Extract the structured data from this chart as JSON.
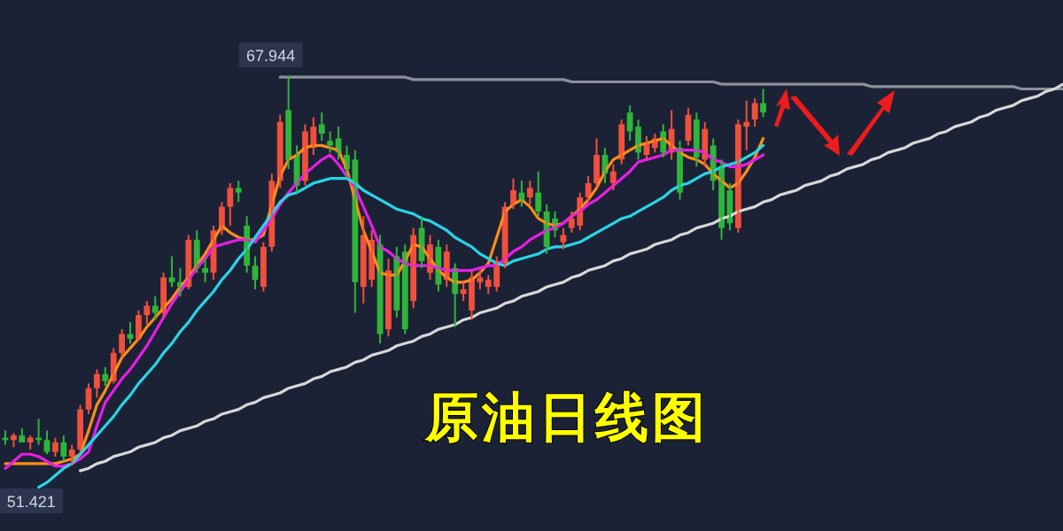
{
  "chart_data": {
    "type": "candlestick",
    "title": "原油日线图",
    "categories": [
      null,
      null,
      null,
      null,
      null,
      null,
      null,
      null,
      null,
      null,
      null,
      null,
      null,
      null,
      null,
      null,
      null,
      null,
      null,
      null,
      null,
      null,
      null,
      null,
      null,
      null,
      null,
      null,
      null,
      null,
      null,
      null,
      null,
      null,
      null,
      null,
      null,
      null,
      null,
      null,
      null,
      null,
      null,
      null,
      null,
      null,
      null,
      null,
      null,
      null,
      null,
      null,
      null,
      null,
      null,
      null,
      null,
      null,
      null,
      null,
      null,
      null,
      null,
      null,
      null,
      null,
      null,
      null,
      null,
      null,
      null,
      null,
      null,
      null,
      null,
      null,
      null,
      null,
      null,
      null,
      null,
      null,
      null,
      null,
      null,
      null,
      null,
      null,
      null,
      null,
      null,
      null,
      null,
      null,
      null,
      null,
      null,
      null,
      null,
      null,
      null,
      null,
      null,
      null,
      null,
      null,
      null,
      null,
      null,
      null,
      null,
      null,
      null,
      null,
      null,
      null,
      null,
      null,
      null,
      null,
      null,
      null,
      null,
      null,
      null,
      null,
      null,
      null
    ],
    "ohlc": [
      [
        52.6,
        52.9,
        52.3,
        52.5
      ],
      [
        52.5,
        52.8,
        52.2,
        52.7
      ],
      [
        52.7,
        53.0,
        52.4,
        52.4
      ],
      [
        52.4,
        52.7,
        52.1,
        52.6
      ],
      [
        52.6,
        53.4,
        52.3,
        52.5
      ],
      [
        52.5,
        52.9,
        51.9,
        52.0
      ],
      [
        52.0,
        52.6,
        51.8,
        52.4
      ],
      [
        52.4,
        52.7,
        51.6,
        51.8
      ],
      [
        51.8,
        52.3,
        51.421,
        52.1
      ],
      [
        52.1,
        54.0,
        52.0,
        53.8
      ],
      [
        53.8,
        54.9,
        53.6,
        54.7
      ],
      [
        54.7,
        55.5,
        54.3,
        55.3
      ],
      [
        55.3,
        55.6,
        54.8,
        55.0
      ],
      [
        55.0,
        56.4,
        54.9,
        56.2
      ],
      [
        56.2,
        57.2,
        56.0,
        57.0
      ],
      [
        57.0,
        57.5,
        56.6,
        56.8
      ],
      [
        56.8,
        58.0,
        56.7,
        57.8
      ],
      [
        57.8,
        58.4,
        57.4,
        58.2
      ],
      [
        58.2,
        58.6,
        57.6,
        57.9
      ],
      [
        57.9,
        59.6,
        57.7,
        59.4
      ],
      [
        59.4,
        60.3,
        59.0,
        59.2
      ],
      [
        59.2,
        59.8,
        58.6,
        59.0
      ],
      [
        59.0,
        61.2,
        58.9,
        61.0
      ],
      [
        61.0,
        61.4,
        59.6,
        59.8
      ],
      [
        59.8,
        60.2,
        59.2,
        59.6
      ],
      [
        59.6,
        61.6,
        59.3,
        61.4
      ],
      [
        61.4,
        62.6,
        61.2,
        62.4
      ],
      [
        62.4,
        63.4,
        61.6,
        63.2
      ],
      [
        63.2,
        63.5,
        62.6,
        63.0
      ],
      [
        61.6,
        62.0,
        59.6,
        59.9
      ],
      [
        59.9,
        60.3,
        58.9,
        59.3
      ],
      [
        59.0,
        60.9,
        58.8,
        60.7
      ],
      [
        60.7,
        63.8,
        60.5,
        63.5
      ],
      [
        63.5,
        66.3,
        63.2,
        66.0
      ],
      [
        66.5,
        67.944,
        64.0,
        64.4
      ],
      [
        64.6,
        65.0,
        63.0,
        63.3
      ],
      [
        63.5,
        65.9,
        63.3,
        65.6
      ],
      [
        64.9,
        66.2,
        64.6,
        65.8
      ],
      [
        65.9,
        66.4,
        65.2,
        65.5
      ],
      [
        65.2,
        65.6,
        64.7,
        65.0
      ],
      [
        65.3,
        65.8,
        64.4,
        64.7
      ],
      [
        64.6,
        65.0,
        63.6,
        64.0
      ],
      [
        64.4,
        64.8,
        57.9,
        59.2
      ],
      [
        59.0,
        62.0,
        58.3,
        61.2
      ],
      [
        59.3,
        61.4,
        59.0,
        61.0
      ],
      [
        60.8,
        61.2,
        56.6,
        57.0
      ],
      [
        57.2,
        60.2,
        56.9,
        59.7
      ],
      [
        60.3,
        60.7,
        57.7,
        58.0
      ],
      [
        60.5,
        60.8,
        57.0,
        57.2
      ],
      [
        58.4,
        61.5,
        58.1,
        61.2
      ],
      [
        61.5,
        62.0,
        59.8,
        60.1
      ],
      [
        59.6,
        61.2,
        59.3,
        60.8
      ],
      [
        60.7,
        61.0,
        58.8,
        59.1
      ],
      [
        59.3,
        60.8,
        59.0,
        60.5
      ],
      [
        59.8,
        60.0,
        57.3,
        58.7
      ],
      [
        58.7,
        59.2,
        58.4,
        58.9
      ],
      [
        58.0,
        59.7,
        57.6,
        59.4
      ],
      [
        59.2,
        59.7,
        58.9,
        59.4
      ],
      [
        59.0,
        59.5,
        58.7,
        59.3
      ],
      [
        59.0,
        60.3,
        58.8,
        60.1
      ],
      [
        60.0,
        62.6,
        59.8,
        62.4
      ],
      [
        62.5,
        63.6,
        62.3,
        63.1
      ],
      [
        63.0,
        63.5,
        62.4,
        62.7
      ],
      [
        62.8,
        63.5,
        62.5,
        63.2
      ],
      [
        63.0,
        63.9,
        62.0,
        62.2
      ],
      [
        62.2,
        62.5,
        60.4,
        60.7
      ],
      [
        61.9,
        62.2,
        61.1,
        61.4
      ],
      [
        60.9,
        61.5,
        60.6,
        61.2
      ],
      [
        61.5,
        62.2,
        61.3,
        61.9
      ],
      [
        61.6,
        63.0,
        61.4,
        62.8
      ],
      [
        62.8,
        63.7,
        62.6,
        63.4
      ],
      [
        63.4,
        65.3,
        63.2,
        64.6
      ],
      [
        64.6,
        64.9,
        63.4,
        63.8
      ],
      [
        63.4,
        64.2,
        63.1,
        63.9
      ],
      [
        64.4,
        66.1,
        64.2,
        65.9
      ],
      [
        66.4,
        66.7,
        65.2,
        65.6
      ],
      [
        65.8,
        66.1,
        64.4,
        64.7
      ],
      [
        64.6,
        65.4,
        64.4,
        65.1
      ],
      [
        64.9,
        65.5,
        64.7,
        65.3
      ],
      [
        65.6,
        65.9,
        64.5,
        64.7
      ],
      [
        64.7,
        66.5,
        64.4,
        65.7
      ],
      [
        64.9,
        65.2,
        62.7,
        63.0
      ],
      [
        65.2,
        66.6,
        65.0,
        66.3
      ],
      [
        66.1,
        66.4,
        64.1,
        64.5
      ],
      [
        64.4,
        66.0,
        64.1,
        65.7
      ],
      [
        65.0,
        65.3,
        63.1,
        63.5
      ],
      [
        64.1,
        64.4,
        61.0,
        61.5
      ],
      [
        63.1,
        63.4,
        61.4,
        61.7
      ],
      [
        61.5,
        66.1,
        61.3,
        65.9
      ],
      [
        65.8,
        66.9,
        64.8,
        66.0
      ],
      [
        66.1,
        67.0,
        65.8,
        66.8
      ],
      [
        66.8,
        67.4,
        66.2,
        66.4
      ],
      null,
      null,
      null,
      null,
      null,
      null,
      null,
      null,
      null,
      null,
      null,
      null,
      null,
      null,
      null,
      null,
      null,
      null,
      null,
      null,
      null,
      null,
      null,
      null,
      null,
      null,
      null,
      null,
      null,
      null,
      null,
      null,
      null,
      null,
      null,
      null
    ],
    "series": [
      {
        "type": "line",
        "color": "#ff8c1a",
        "values": [
          51.5,
          51.5,
          51.5,
          51.5,
          51.5,
          51.5,
          51.5,
          51.6,
          51.7,
          51.9,
          52.9,
          54.0,
          54.6,
          55.3,
          56.0,
          56.4,
          56.8,
          57.3,
          57.7,
          58.1,
          58.5,
          59.0,
          59.4,
          59.9,
          60.4,
          61.0,
          61.6,
          61.3,
          61.1,
          61.0,
          61.0,
          61.2,
          62.5,
          63.7,
          64.4,
          64.6,
          64.9,
          65.0,
          65.0,
          64.9,
          64.8,
          64.0,
          62.7,
          61.4,
          60.5,
          59.6,
          59.5,
          59.5,
          60.1,
          60.8,
          60.7,
          60.2,
          59.7,
          59.4,
          59.2,
          59.2,
          59.3,
          59.6,
          60.0,
          61.1,
          62.2,
          62.5,
          62.7,
          62.4,
          61.9,
          61.7,
          61.6,
          61.7,
          62.0,
          62.3,
          62.7,
          63.2,
          63.9,
          64.4,
          64.6,
          64.8,
          65.0,
          65.1,
          65.2,
          65.3,
          65.0,
          64.7,
          64.5,
          64.4,
          64.2,
          63.8,
          63.5,
          63.2,
          63.4,
          63.9,
          64.5,
          65.3,
          null,
          null,
          null,
          null,
          null,
          null,
          null,
          null,
          null,
          null,
          null,
          null,
          null,
          null,
          null,
          null,
          null,
          null,
          null,
          null,
          null,
          null,
          null,
          null,
          null,
          null,
          null,
          null,
          null,
          null,
          null,
          null,
          null,
          null,
          null,
          null
        ]
      },
      {
        "type": "line",
        "color": "#e61ee6",
        "values": [
          51.3,
          51.6,
          51.9,
          51.9,
          51.8,
          51.6,
          51.4,
          51.4,
          51.5,
          51.7,
          52.0,
          53.1,
          54.1,
          54.6,
          55.1,
          55.5,
          56.0,
          56.5,
          57.1,
          57.7,
          58.3,
          58.8,
          59.3,
          59.8,
          60.2,
          60.7,
          60.8,
          60.9,
          61.0,
          61.0,
          60.9,
          61.4,
          61.9,
          62.5,
          63.0,
          63.4,
          63.8,
          64.1,
          64.4,
          64.6,
          64.2,
          63.7,
          63.2,
          62.4,
          61.6,
          60.7,
          60.5,
          60.2,
          60.0,
          59.9,
          59.9,
          59.9,
          59.8,
          59.7,
          59.7,
          59.7,
          59.7,
          59.8,
          59.9,
          59.9,
          60.2,
          60.5,
          60.7,
          61.0,
          61.2,
          61.4,
          61.5,
          61.7,
          62.0,
          62.2,
          62.5,
          62.7,
          63.0,
          63.3,
          63.6,
          63.9,
          64.3,
          64.4,
          64.5,
          64.6,
          64.8,
          64.8,
          64.8,
          64.8,
          64.7,
          64.4,
          64.3,
          64.1,
          64.1,
          64.2,
          64.4,
          64.6,
          null,
          null,
          null,
          null,
          null,
          null,
          null,
          null,
          null,
          null,
          null,
          null,
          null,
          null,
          null,
          null,
          null,
          null,
          null,
          null,
          null,
          null,
          null,
          null,
          null,
          null,
          null,
          null,
          null,
          null,
          null,
          null,
          null,
          null,
          null,
          null
        ]
      },
      {
        "type": "line",
        "color": "#2ad4e6",
        "values": [
          null,
          null,
          null,
          null,
          50.5,
          50.7,
          51.0,
          51.3,
          51.5,
          51.9,
          52.3,
          52.7,
          53.1,
          53.5,
          54.0,
          54.4,
          54.9,
          55.3,
          55.7,
          56.2,
          56.6,
          57.1,
          57.5,
          58.0,
          58.4,
          58.8,
          59.3,
          59.7,
          60.2,
          60.6,
          61.1,
          61.6,
          62.1,
          62.6,
          62.9,
          63.0,
          63.2,
          63.4,
          63.5,
          63.6,
          63.6,
          63.6,
          63.4,
          63.1,
          62.9,
          62.7,
          62.5,
          62.3,
          62.2,
          62.1,
          61.9,
          61.8,
          61.6,
          61.4,
          61.1,
          60.9,
          60.7,
          60.4,
          60.2,
          60.0,
          59.9,
          60.1,
          60.2,
          60.3,
          60.4,
          60.6,
          60.7,
          60.7,
          60.8,
          60.9,
          61.1,
          61.3,
          61.5,
          61.7,
          61.9,
          62.0,
          62.2,
          62.4,
          62.6,
          62.8,
          63.1,
          63.3,
          63.4,
          63.6,
          63.8,
          63.9,
          64.1,
          64.2,
          64.3,
          64.5,
          64.7,
          65.0,
          null,
          null,
          null,
          null,
          null,
          null,
          null,
          null,
          null,
          null,
          null,
          null,
          null,
          null,
          null,
          null,
          null,
          null,
          null,
          null,
          null,
          null,
          null,
          null,
          null,
          null,
          null,
          null,
          null,
          null,
          null,
          null,
          null,
          null,
          null,
          null
        ]
      },
      {
        "type": "line",
        "color": "#8c9099",
        "values": [
          null,
          null,
          null,
          null,
          null,
          null,
          null,
          null,
          null,
          null,
          null,
          null,
          null,
          null,
          null,
          null,
          null,
          null,
          null,
          null,
          null,
          null,
          null,
          null,
          null,
          null,
          null,
          null,
          null,
          null,
          null,
          null,
          null,
          67.9,
          67.9,
          67.9,
          67.9,
          67.9,
          67.9,
          67.9,
          67.9,
          67.9,
          67.9,
          67.9,
          67.9,
          67.9,
          67.9,
          67.9,
          67.9,
          67.8,
          67.8,
          67.8,
          67.8,
          67.8,
          67.8,
          67.8,
          67.8,
          67.8,
          67.8,
          67.8,
          67.8,
          67.8,
          67.8,
          67.8,
          67.8,
          67.8,
          67.8,
          67.8,
          67.7,
          67.7,
          67.7,
          67.7,
          67.7,
          67.7,
          67.7,
          67.7,
          67.7,
          67.7,
          67.7,
          67.7,
          67.7,
          67.7,
          67.7,
          67.7,
          67.7,
          67.7,
          67.6,
          67.6,
          67.6,
          67.6,
          67.6,
          67.6,
          67.6,
          67.6,
          67.6,
          67.6,
          67.6,
          67.6,
          67.6,
          67.6,
          67.6,
          67.6,
          67.6,
          67.6,
          67.5,
          67.5,
          67.5,
          67.5,
          67.5,
          67.5,
          67.5,
          67.5,
          67.5,
          67.5,
          67.5,
          67.5,
          67.5,
          67.5,
          67.5,
          67.5,
          67.5,
          67.5,
          67.4,
          67.4,
          67.4,
          67.4,
          67.4,
          67.4
        ]
      },
      {
        "type": "line",
        "color": "#d8d8d8",
        "values": [
          null,
          null,
          null,
          null,
          null,
          null,
          null,
          null,
          null,
          51.2,
          51.3,
          51.5,
          51.6,
          51.8,
          51.9,
          52.0,
          52.2,
          52.3,
          52.4,
          52.6,
          52.7,
          52.9,
          53.0,
          53.1,
          53.3,
          53.4,
          53.6,
          53.7,
          53.8,
          54.0,
          54.1,
          54.3,
          54.4,
          54.5,
          54.7,
          54.8,
          54.9,
          55.1,
          55.2,
          55.4,
          55.5,
          55.6,
          55.8,
          55.9,
          56.1,
          56.2,
          56.3,
          56.5,
          56.6,
          56.7,
          56.9,
          57.0,
          57.2,
          57.3,
          57.4,
          57.6,
          57.7,
          57.9,
          58.0,
          58.1,
          58.3,
          58.4,
          58.6,
          58.7,
          58.8,
          59.0,
          59.1,
          59.2,
          59.4,
          59.5,
          59.7,
          59.8,
          59.9,
          60.1,
          60.2,
          60.4,
          60.5,
          60.6,
          60.8,
          60.9,
          61.0,
          61.2,
          61.3,
          61.5,
          61.6,
          61.7,
          61.9,
          62.0,
          62.2,
          62.3,
          62.4,
          62.6,
          62.7,
          62.9,
          63.0,
          63.1,
          63.3,
          63.4,
          63.5,
          63.7,
          63.8,
          64.0,
          64.1,
          64.2,
          64.4,
          64.5,
          64.7,
          64.8,
          64.9,
          65.1,
          65.2,
          65.3,
          65.5,
          65.6,
          65.8,
          65.9,
          66.0,
          66.2,
          66.3,
          66.5,
          66.6,
          66.7,
          66.9,
          67.0,
          67.1,
          67.3,
          67.4,
          67.6
        ]
      }
    ],
    "annotations": [
      "67.944",
      "51.421"
    ]
  }
}
